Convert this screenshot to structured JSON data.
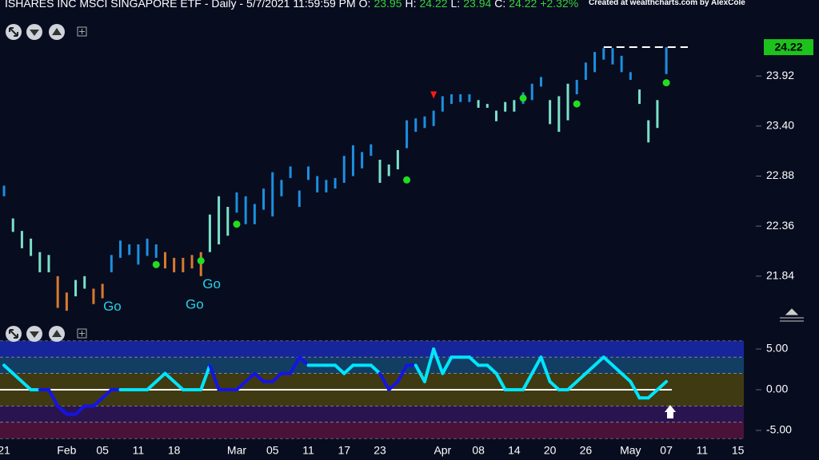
{
  "header": {
    "title": "ISHARES INC MSCI SINGAPORE ETF",
    "meta": "- Daily - 5/7/2021 11:59:59 PM",
    "ohlc": [
      {
        "label": "O:",
        "value": "23.95"
      },
      {
        "label": "H:",
        "value": "24.22"
      },
      {
        "label": "L:",
        "value": "23.94"
      },
      {
        "label": "C:",
        "value": "24.22"
      }
    ],
    "change": "+2.32%",
    "credit": "Created at wealthcharts.com by AlexCole"
  },
  "chart_data": [
    {
      "type": "ohlc",
      "xlim": [
        -0.45,
        84
      ],
      "ylim": [
        21.39,
        24.71
      ],
      "yticks": [
        21.84,
        22.36,
        22.88,
        {
          "value": 23.4,
          "label": "23.40"
        },
        23.92
      ],
      "highs": [
        22.78,
        22.44,
        22.31,
        22.23,
        22.09,
        22.06,
        21.84,
        21.67,
        21.8,
        21.84,
        21.71,
        21.76,
        22.06,
        22.21,
        22.17,
        22.17,
        22.23,
        22.17,
        22.09,
        22.03,
        22.03,
        22.06,
        22.09,
        22.48,
        22.67,
        22.56,
        22.71,
        22.67,
        22.59,
        22.75,
        22.92,
        22.84,
        22.98,
        22.73,
        22.98,
        22.88,
        22.84,
        22.86,
        23.09,
        23.2,
        23.13,
        23.21,
        23.05,
        23,
        23.15,
        23.46,
        23.48,
        23.5,
        23.56,
        23.71,
        23.73,
        23.73,
        23.73,
        23.67,
        23.63,
        23.56,
        23.65,
        23.67,
        23.75,
        23.84,
        23.91,
        23.67,
        23.71,
        23.84,
        23.88,
        24.06,
        24.17,
        24.21,
        24.21,
        24.13,
        23.96,
        23.78,
        23.46,
        23.67,
        24.22
      ],
      "lows": [
        22.67,
        22.3,
        22.13,
        22.05,
        21.88,
        21.88,
        21.51,
        21.48,
        21.63,
        21.71,
        21.55,
        21.61,
        21.88,
        22.03,
        22.06,
        21.96,
        22.05,
        22.03,
        21.92,
        21.88,
        21.88,
        21.92,
        21.84,
        22.09,
        22.17,
        22.26,
        22.5,
        22.38,
        22.38,
        22.53,
        22.46,
        22.67,
        22.86,
        22.56,
        22.84,
        22.71,
        22.71,
        22.75,
        22.81,
        22.88,
        22.96,
        23.09,
        22.81,
        22.88,
        22.95,
        23.17,
        23.34,
        23.38,
        23.4,
        23.55,
        23.63,
        23.65,
        23.65,
        23.59,
        23.59,
        23.45,
        23.55,
        23.55,
        23.63,
        23.67,
        23.81,
        23.42,
        23.34,
        23.46,
        23.73,
        23.88,
        23.96,
        24.09,
        24.04,
        23.96,
        23.88,
        23.63,
        23.23,
        23.38,
        23.94
      ],
      "colors": [
        "#1c8fe0",
        "#7be0c8",
        "#7be0c8",
        "#7be0c8",
        "#7be0c8",
        "#7be0c8",
        "#d97a30",
        "#d97a30",
        "#7be0c8",
        "#7be0c8",
        "#d97a30",
        "#d97a30",
        "#1c8fe0",
        "#1c8fe0",
        "#1c8fe0",
        "#1c8fe0",
        "#1c8fe0",
        "#1c8fe0",
        "#d97a30",
        "#d97a30",
        "#d97a30",
        "#d97a30",
        "#d97a30",
        "#7be0c8",
        "#7be0c8",
        "#7be0c8",
        "#1c8fe0",
        "#1c8fe0",
        "#1c8fe0",
        "#1c8fe0",
        "#1c8fe0",
        "#1c8fe0",
        "#1c8fe0",
        "#1c8fe0",
        "#1c8fe0",
        "#1c8fe0",
        "#1c8fe0",
        "#1c8fe0",
        "#1c8fe0",
        "#1c8fe0",
        "#1c8fe0",
        "#1c8fe0",
        "#7be0c8",
        "#7be0c8",
        "#7be0c8",
        "#1c8fe0",
        "#1c8fe0",
        "#1c8fe0",
        "#1c8fe0",
        "#1c8fe0",
        "#1c8fe0",
        "#1c8fe0",
        "#1c8fe0",
        "#7be0c8",
        "#7be0c8",
        "#7be0c8",
        "#7be0c8",
        "#7be0c8",
        "#1c8fe0",
        "#1c8fe0",
        "#1c8fe0",
        "#7be0c8",
        "#7be0c8",
        "#7be0c8",
        "#1c8fe0",
        "#1c8fe0",
        "#1c8fe0",
        "#1c8fe0",
        "#1c8fe0",
        "#1c8fe0",
        "#1c8fe0",
        "#7be0c8",
        "#7be0c8",
        "#7be0c8",
        "#1c8fe0"
      ],
      "signals": {
        "x": [
          17,
          22,
          26,
          45,
          58,
          64,
          74
        ],
        "y": [
          21.96,
          22.0,
          22.38,
          22.84,
          23.69,
          23.63,
          23.85
        ],
        "color": "#22dd22"
      },
      "warnings": {
        "x": [
          48
        ],
        "y": [
          23.71
        ],
        "color": "#ff1a1a"
      },
      "annotations": [
        {
          "text": "Go",
          "x": 12.1,
          "y": 21.52
        },
        {
          "text": "Go",
          "x": 21.3,
          "y": 21.54
        },
        {
          "text": "Go",
          "x": 23.2,
          "y": 21.75
        }
      ],
      "annotation_color": "#22d3e6",
      "last_price": 24.22,
      "last_color": "#1dc21d",
      "last_from": 67
    },
    {
      "type": "oscillator",
      "xlim": [
        -0.45,
        84
      ],
      "ylim": [
        -6.67,
        7.65
      ],
      "yticks": [
        {
          "value": 5,
          "label": "5.00"
        },
        {
          "value": 0,
          "label": "0.00"
        },
        {
          "value": -5,
          "label": "-5.00"
        }
      ],
      "xticks": [
        {
          "value": 0,
          "label": "21"
        },
        {
          "value": 7,
          "label": "Feb"
        },
        {
          "value": 11,
          "label": "05"
        },
        {
          "value": 15,
          "label": "11"
        },
        {
          "value": 19,
          "label": "18"
        },
        {
          "value": 26,
          "label": "Mar"
        },
        {
          "value": 30,
          "label": "05"
        },
        {
          "value": 34,
          "label": "11"
        },
        {
          "value": 38,
          "label": "17"
        },
        {
          "value": 42,
          "label": "23"
        },
        {
          "value": 49,
          "label": "Apr"
        },
        {
          "value": 53,
          "label": "08"
        },
        {
          "value": 57,
          "label": "14"
        },
        {
          "value": 61,
          "label": "20"
        },
        {
          "value": 65,
          "label": "26"
        },
        {
          "value": 70,
          "label": "May"
        },
        {
          "value": 74,
          "label": "07"
        },
        {
          "value": 78,
          "label": "11"
        },
        {
          "value": 82,
          "label": "15"
        }
      ],
      "bands": [
        {
          "from": 4,
          "to": 6,
          "color": "#17259a"
        },
        {
          "from": 2,
          "to": 4,
          "color": "#123e63"
        },
        {
          "from": -2,
          "to": 2,
          "color": "#3f3a12"
        },
        {
          "from": -4,
          "to": -2,
          "color": "#2a1450"
        },
        {
          "from": -6,
          "to": -4,
          "color": "#4a1238"
        }
      ],
      "values": [
        3,
        2,
        1,
        0,
        0,
        0,
        -2,
        -3,
        -3,
        -2,
        -2,
        -1,
        0,
        0,
        0,
        0,
        0,
        1,
        2,
        1,
        0,
        0,
        0,
        3,
        0,
        0,
        0,
        1,
        2,
        1,
        1,
        2,
        2,
        4,
        3,
        3,
        3,
        3,
        2,
        3,
        3,
        3,
        2,
        0,
        1,
        3,
        3,
        1,
        5,
        2,
        4,
        4,
        4,
        3,
        3,
        2,
        0,
        0,
        0,
        2,
        4,
        1,
        0,
        0,
        1,
        2,
        3,
        4,
        3,
        2,
        1,
        -1,
        -1,
        0,
        1
      ],
      "colors": [
        "#00e5ff",
        "#00e5ff",
        "#00e5ff",
        "#00e5ff",
        "#00e5ff",
        "#1414e6",
        "#1414e6",
        "#1414e6",
        "#1414e6",
        "#1414e6",
        "#1414e6",
        "#1414e6",
        "#1414e6",
        "#1414e6",
        "#00e5ff",
        "#00e5ff",
        "#00e5ff",
        "#00e5ff",
        "#00e5ff",
        "#00e5ff",
        "#00e5ff",
        "#00e5ff",
        "#00e5ff",
        "#00e5ff",
        "#1414e6",
        "#1414e6",
        "#1414e6",
        "#1414e6",
        "#1414e6",
        "#1414e6",
        "#1414e6",
        "#1414e6",
        "#1414e6",
        "#1414e6",
        "#1414e6",
        "#00e5ff",
        "#00e5ff",
        "#00e5ff",
        "#00e5ff",
        "#00e5ff",
        "#00e5ff",
        "#00e5ff",
        "#00e5ff",
        "#1414e6",
        "#1414e6",
        "#1414e6",
        "#1414e6",
        "#00e5ff",
        "#00e5ff",
        "#00e5ff",
        "#00e5ff",
        "#00e5ff",
        "#00e5ff",
        "#00e5ff",
        "#00e5ff",
        "#00e5ff",
        "#00e5ff",
        "#00e5ff",
        "#00e5ff",
        "#00e5ff",
        "#00e5ff",
        "#00e5ff",
        "#00e5ff",
        "#00e5ff",
        "#00e5ff",
        "#00e5ff",
        "#00e5ff",
        "#00e5ff",
        "#00e5ff",
        "#00e5ff",
        "#00e5ff",
        "#00e5ff",
        "#00e5ff",
        "#00e5ff",
        "#00e5ff"
      ],
      "zero_color": "#ffffff"
    }
  ]
}
